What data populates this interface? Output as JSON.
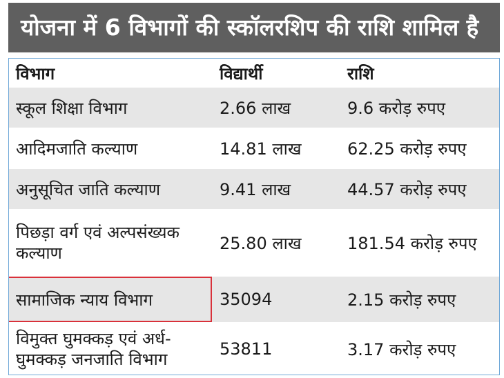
{
  "title": "योजना में 6 विभागों की स्कॉलरशिप की राशि शामिल है",
  "table": {
    "headers": [
      "विभाग",
      "विद्यार्थी",
      "राशि"
    ],
    "rows": [
      {
        "dept_line1": "स्कूल शिक्षा विभाग",
        "dept_line2": "",
        "students": "2.66 लाख",
        "amount": "9.6 करोड़ रुपए"
      },
      {
        "dept_line1": "आदिमजाति कल्याण",
        "dept_line2": "",
        "students": "14.81 लाख",
        "amount": "62.25 करोड़ रुपए"
      },
      {
        "dept_line1": "अनुसूचित जाति कल्याण",
        "dept_line2": "",
        "students": "9.41 लाख",
        "amount": "44.57 करोड़ रुपए"
      },
      {
        "dept_line1": "पिछड़ा वर्ग एवं अल्पसंख्यक",
        "dept_line2": "कल्याण",
        "students": "25.80 लाख",
        "amount": "181.54 करोड़ रुपए"
      },
      {
        "dept_line1": "सामाजिक न्याय विभाग",
        "dept_line2": "",
        "students": "35094",
        "amount": "2.15 करोड़ रुपए"
      },
      {
        "dept_line1": "विमुक्त घुमक्कड़ एवं अर्ध-",
        "dept_line2": "घुमक्कड़ जनजाति विभाग",
        "students": "53811",
        "amount": "3.17 करोड़ रुपए"
      }
    ]
  },
  "colors": {
    "header_bg": "#5f5f5f",
    "shade": "#e6e6e6",
    "border": "#6fa8d8",
    "highlight": "#d9313a"
  }
}
